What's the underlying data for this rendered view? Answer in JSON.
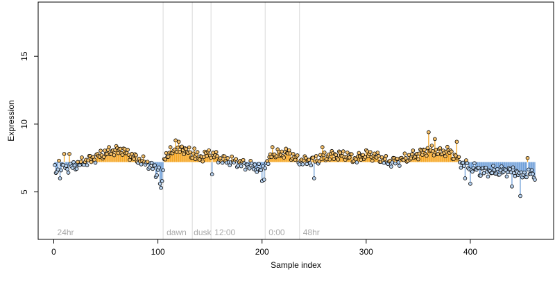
{
  "colors": {
    "above_stem": "#f5a623",
    "below_stem": "#6f9fd8",
    "point_fill_high": "#f5c06a",
    "point_fill_low": "#b6d1ef",
    "point_stroke": "#000000",
    "region_line": "#d9d9d9",
    "region_text": "#a8a8a8",
    "axis": "#000000"
  },
  "chart_data": {
    "type": "scatter",
    "title": "",
    "xlabel": "Sample index",
    "ylabel": "Expression",
    "xlim": [
      -15,
      480
    ],
    "ylim": [
      1.5,
      19
    ],
    "xticks": [
      0,
      100,
      200,
      300,
      400
    ],
    "xtick_labels": [
      "0",
      "100",
      "200",
      "300",
      "400"
    ],
    "yticks": [
      5,
      10,
      15
    ],
    "ytick_labels": [
      "5",
      "10",
      "15"
    ],
    "grid": false,
    "legend": "none",
    "baseline": 7.2,
    "region_lines": [
      105,
      133,
      151,
      203,
      236
    ],
    "region_labels": [
      {
        "x": 2,
        "label": "24hr"
      },
      {
        "x": 107,
        "label": "dawn"
      },
      {
        "x": 133,
        "label": "dusk"
      },
      {
        "x": 153,
        "label": "12:00"
      },
      {
        "x": 205,
        "label": "0:00"
      },
      {
        "x": 238,
        "label": "48hr"
      }
    ],
    "trend": [
      [
        0,
        6.6
      ],
      [
        20,
        6.9
      ],
      [
        35,
        7.4
      ],
      [
        55,
        8.0
      ],
      [
        65,
        8.1
      ],
      [
        80,
        7.4
      ],
      [
        90,
        7.1
      ],
      [
        100,
        6.6
      ],
      [
        106,
        7.6
      ],
      [
        115,
        8.0
      ],
      [
        125,
        8.2
      ],
      [
        133,
        7.7
      ],
      [
        140,
        7.5
      ],
      [
        150,
        7.9
      ],
      [
        160,
        7.4
      ],
      [
        175,
        7.2
      ],
      [
        190,
        6.9
      ],
      [
        200,
        6.6
      ],
      [
        210,
        7.7
      ],
      [
        225,
        7.9
      ],
      [
        235,
        7.3
      ],
      [
        250,
        7.3
      ],
      [
        265,
        7.7
      ],
      [
        280,
        7.7
      ],
      [
        290,
        7.4
      ],
      [
        300,
        7.8
      ],
      [
        310,
        7.6
      ],
      [
        320,
        7.2
      ],
      [
        330,
        7.3
      ],
      [
        340,
        7.5
      ],
      [
        350,
        7.8
      ],
      [
        360,
        8.1
      ],
      [
        370,
        7.9
      ],
      [
        380,
        8.0
      ],
      [
        390,
        7.2
      ],
      [
        400,
        6.8
      ],
      [
        410,
        6.6
      ],
      [
        420,
        6.5
      ],
      [
        430,
        6.5
      ],
      [
        440,
        6.6
      ],
      [
        450,
        6.3
      ],
      [
        460,
        6.4
      ]
    ],
    "noise_amplitude": 0.45,
    "outliers": [
      {
        "x": 2,
        "y": 6.4
      },
      {
        "x": 3,
        "y": 6.5
      },
      {
        "x": 5,
        "y": 7.3
      },
      {
        "x": 6,
        "y": 6.0
      },
      {
        "x": 10,
        "y": 7.8
      },
      {
        "x": 15,
        "y": 7.8
      },
      {
        "x": 98,
        "y": 6.1
      },
      {
        "x": 101,
        "y": 6.8
      },
      {
        "x": 102,
        "y": 5.6
      },
      {
        "x": 103,
        "y": 5.3
      },
      {
        "x": 104,
        "y": 5.8
      },
      {
        "x": 105,
        "y": 6.6
      },
      {
        "x": 117,
        "y": 8.8
      },
      {
        "x": 120,
        "y": 8.7
      },
      {
        "x": 135,
        "y": 8.2
      },
      {
        "x": 152,
        "y": 6.3
      },
      {
        "x": 200,
        "y": 5.8
      },
      {
        "x": 202,
        "y": 5.9
      },
      {
        "x": 210,
        "y": 8.3
      },
      {
        "x": 250,
        "y": 6.0
      },
      {
        "x": 258,
        "y": 8.3
      },
      {
        "x": 360,
        "y": 9.4
      },
      {
        "x": 366,
        "y": 8.9
      },
      {
        "x": 387,
        "y": 8.7
      },
      {
        "x": 395,
        "y": 6.0
      },
      {
        "x": 400,
        "y": 5.6
      },
      {
        "x": 410,
        "y": 6.2
      },
      {
        "x": 440,
        "y": 5.4
      },
      {
        "x": 448,
        "y": 4.7
      },
      {
        "x": 455,
        "y": 7.5
      },
      {
        "x": 462,
        "y": 5.9
      }
    ],
    "point_count": 462
  }
}
